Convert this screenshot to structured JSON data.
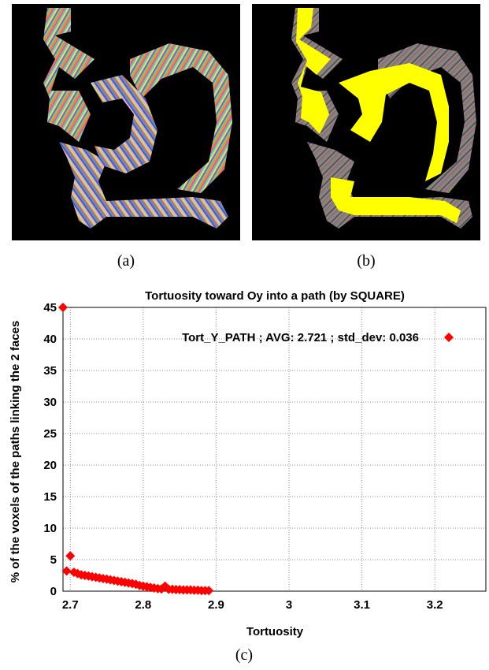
{
  "captions": {
    "a": "(a)",
    "b": "(b)",
    "c": "(c)"
  },
  "colors": {
    "panel_background": "#000000",
    "path_yellow": "#ffff00",
    "marker_red": "#ff0000",
    "grid": "#888888"
  },
  "chart_data": {
    "type": "scatter",
    "title": "Tortuosity toward Oy into a path (by SQUARE)",
    "xlabel": "Tortuosity",
    "ylabel": "% of the voxels of the paths linking the 2 faces",
    "xlim": [
      2.69,
      3.27
    ],
    "ylim": [
      0,
      45
    ],
    "xticks": [
      2.7,
      2.8,
      2.9,
      3,
      3.1,
      3.2
    ],
    "xtick_labels": [
      "2.7",
      "2.8",
      "2.9",
      "3",
      "3.1",
      "3.2"
    ],
    "yticks": [
      0,
      5,
      10,
      15,
      20,
      25,
      30,
      35,
      40,
      45
    ],
    "ytick_labels": [
      "0",
      "5",
      "10",
      "15",
      "20",
      "25",
      "30",
      "35",
      "40",
      "45"
    ],
    "grid": true,
    "legend_position": "top-right",
    "series": [
      {
        "name": "Tort_Y_PATH ; AVG: 2.721 ; std_dev: 0.036",
        "marker": "diamond",
        "x": [
          2.69,
          2.695,
          2.7,
          2.705,
          2.71,
          2.715,
          2.72,
          2.725,
          2.73,
          2.735,
          2.74,
          2.745,
          2.75,
          2.755,
          2.76,
          2.765,
          2.77,
          2.775,
          2.78,
          2.785,
          2.79,
          2.795,
          2.8,
          2.805,
          2.81,
          2.815,
          2.82,
          2.825,
          2.83,
          2.835,
          2.84,
          2.845,
          2.85,
          2.855,
          2.86,
          2.865,
          2.87,
          2.875,
          2.88,
          2.885,
          2.89
        ],
        "y": [
          45,
          3.2,
          5.6,
          3.0,
          2.8,
          2.6,
          2.5,
          2.4,
          2.3,
          2.2,
          2.1,
          2.0,
          1.9,
          1.8,
          1.7,
          1.6,
          1.5,
          1.4,
          1.3,
          1.2,
          1.1,
          0.9,
          0.8,
          0.7,
          0.6,
          0.5,
          0.4,
          0.35,
          0.8,
          0.3,
          0.3,
          0.25,
          0.25,
          0.2,
          0.2,
          0.2,
          0.15,
          0.15,
          0.1,
          0.1,
          0.1
        ]
      }
    ]
  }
}
